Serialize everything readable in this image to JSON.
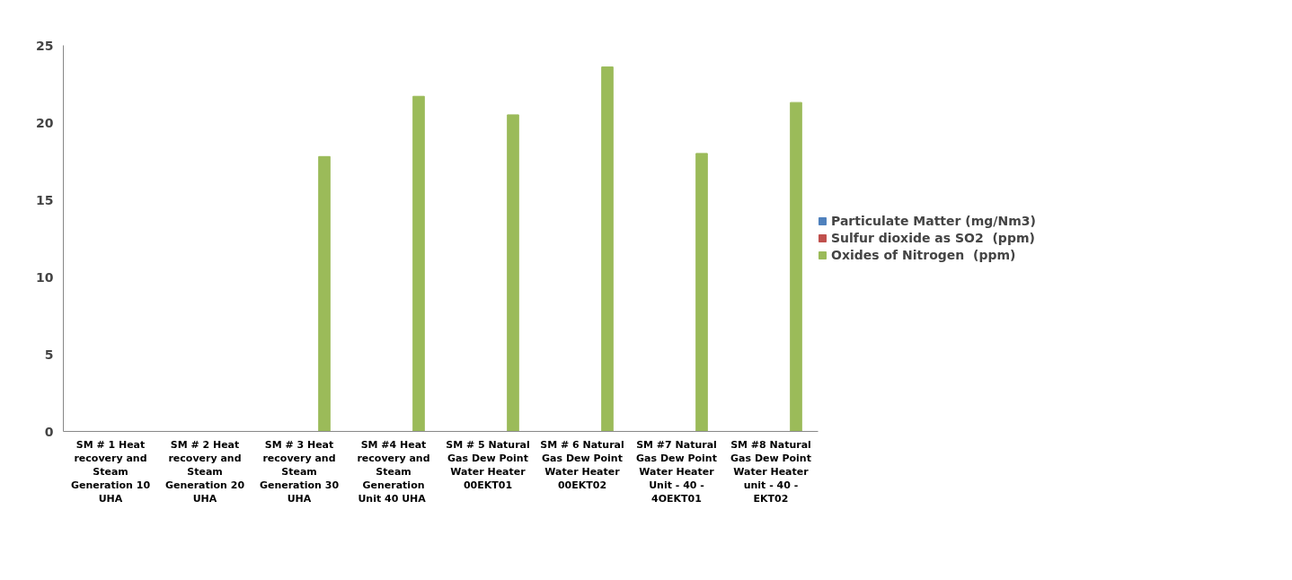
{
  "chart_data": {
    "type": "bar",
    "categories": [
      "SM # 1 Heat recovery and Steam Generation 10 UHA",
      "SM # 2 Heat recovery and Steam Generation 20 UHA",
      "SM # 3 Heat recovery and Steam Generation 30 UHA",
      "SM #4 Heat recovery and Steam Generation Unit  40 UHA",
      "SM # 5 Natural Gas Dew Point Water Heater 00EKT01",
      "SM # 6 Natural Gas Dew Point Water Heater 00EKT02",
      "SM #7 Natural Gas Dew Point Water Heater Unit - 40 - 4OEKT01",
      "SM #8 Natural Gas Dew Point Water Heater unit - 40 - EKT02"
    ],
    "series": [
      {
        "name": "Particulate Matter (mg/Nm3)",
        "color": "#4f81bd",
        "values": [
          null,
          null,
          null,
          null,
          null,
          null,
          null,
          null
        ]
      },
      {
        "name": "Sulfur dioxide as SO2  (ppm)",
        "color": "#c0504d",
        "values": [
          null,
          null,
          null,
          null,
          null,
          null,
          null,
          null
        ]
      },
      {
        "name": "Oxides of Nitrogen  (ppm)",
        "color": "#9bbb59",
        "values": [
          null,
          null,
          17.8,
          21.7,
          20.5,
          23.6,
          18.0,
          21.3
        ]
      }
    ],
    "ylim": [
      0,
      25
    ],
    "yticks": [
      0,
      5,
      10,
      15,
      20,
      25
    ],
    "grid": false,
    "legend": "right"
  }
}
